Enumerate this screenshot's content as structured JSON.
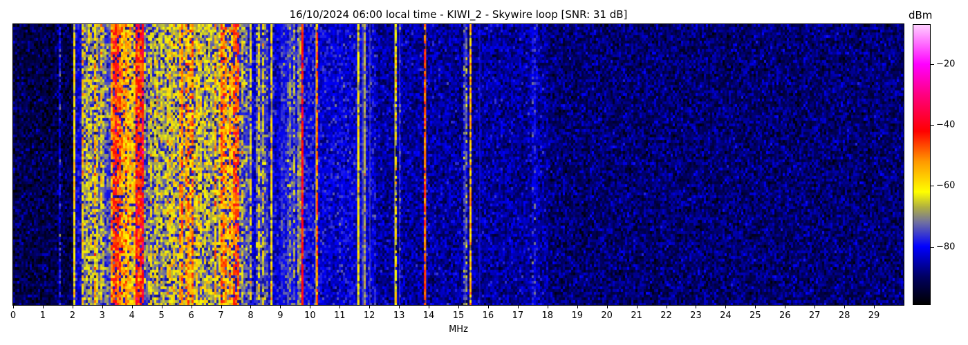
{
  "chart_data": {
    "type": "heatmap",
    "title": "16/10/2024 06:00 local time - KIWI_2 - Skywire loop [SNR: 31 dB]",
    "xlabel": "MHz",
    "xlim": [
      0,
      30
    ],
    "xticks": [
      "0",
      "1",
      "2",
      "3",
      "4",
      "5",
      "6",
      "7",
      "8",
      "9",
      "10",
      "11",
      "12",
      "13",
      "14",
      "15",
      "16",
      "17",
      "18",
      "19",
      "20",
      "21",
      "22",
      "23",
      "24",
      "25",
      "26",
      "27",
      "28",
      "29"
    ],
    "colorbar": {
      "label": "dBm",
      "range": [
        -99,
        -7
      ],
      "ticks": [
        -20,
        -40,
        -60,
        -80
      ],
      "tick_labels": [
        "−20",
        "−40",
        "−60",
        "−80"
      ],
      "colormap_stops": [
        {
          "dbm": -99,
          "color": "#000000"
        },
        {
          "dbm": -90,
          "color": "#000060"
        },
        {
          "dbm": -80,
          "color": "#0000ff"
        },
        {
          "dbm": -72,
          "color": "#7070a0"
        },
        {
          "dbm": -67,
          "color": "#b0b040"
        },
        {
          "dbm": -62,
          "color": "#ffff00"
        },
        {
          "dbm": -52,
          "color": "#ff9900"
        },
        {
          "dbm": -42,
          "color": "#ff0000"
        },
        {
          "dbm": -30,
          "color": "#ff0080"
        },
        {
          "dbm": -20,
          "color": "#ff00ff"
        },
        {
          "dbm": -7,
          "color": "#ffd0ff"
        }
      ]
    },
    "noise_floor": [
      {
        "from_mhz": 0,
        "to_mhz": 2.0,
        "dbm": -92
      },
      {
        "from_mhz": 2.0,
        "to_mhz": 9.0,
        "dbm": -82
      },
      {
        "from_mhz": 9.0,
        "to_mhz": 10.3,
        "dbm": -80
      },
      {
        "from_mhz": 10.3,
        "to_mhz": 12.2,
        "dbm": -82
      },
      {
        "from_mhz": 12.2,
        "to_mhz": 16.0,
        "dbm": -86
      },
      {
        "from_mhz": 16.0,
        "to_mhz": 18.0,
        "dbm": -86
      },
      {
        "from_mhz": 18.0,
        "to_mhz": 30,
        "dbm": -89
      }
    ],
    "signals": [
      {
        "from_mhz": 1.53,
        "to_mhz": 1.57,
        "dbm": -80
      },
      {
        "from_mhz": 2.03,
        "to_mhz": 2.08,
        "dbm": -60
      },
      {
        "from_mhz": 2.3,
        "to_mhz": 3.0,
        "dbm": -66
      },
      {
        "from_mhz": 3.0,
        "to_mhz": 3.3,
        "dbm": -72
      },
      {
        "from_mhz": 3.3,
        "to_mhz": 3.8,
        "dbm": -48
      },
      {
        "from_mhz": 3.8,
        "to_mhz": 4.1,
        "dbm": -58
      },
      {
        "from_mhz": 4.1,
        "to_mhz": 4.4,
        "dbm": -44
      },
      {
        "from_mhz": 4.4,
        "to_mhz": 5.6,
        "dbm": -67
      },
      {
        "from_mhz": 5.6,
        "to_mhz": 6.3,
        "dbm": -58
      },
      {
        "from_mhz": 6.3,
        "to_mhz": 7.0,
        "dbm": -65
      },
      {
        "from_mhz": 7.0,
        "to_mhz": 7.6,
        "dbm": -55
      },
      {
        "from_mhz": 7.6,
        "to_mhz": 8.0,
        "dbm": -70
      },
      {
        "from_mhz": 8.2,
        "to_mhz": 8.6,
        "dbm": -67
      },
      {
        "from_mhz": 8.68,
        "to_mhz": 8.74,
        "dbm": -60
      },
      {
        "from_mhz": 9.0,
        "to_mhz": 9.5,
        "dbm": -76
      },
      {
        "from_mhz": 9.6,
        "to_mhz": 9.68,
        "dbm": -70
      },
      {
        "from_mhz": 9.7,
        "to_mhz": 9.76,
        "dbm": -40
      },
      {
        "from_mhz": 10.18,
        "to_mhz": 10.24,
        "dbm": -60
      },
      {
        "from_mhz": 11.58,
        "to_mhz": 11.66,
        "dbm": -61
      },
      {
        "from_mhz": 11.75,
        "to_mhz": 11.88,
        "dbm": -72
      },
      {
        "from_mhz": 12.0,
        "to_mhz": 12.04,
        "dbm": -72
      },
      {
        "from_mhz": 12.84,
        "to_mhz": 12.89,
        "dbm": -62
      },
      {
        "from_mhz": 13.0,
        "to_mhz": 13.03,
        "dbm": -72
      },
      {
        "from_mhz": 13.87,
        "to_mhz": 13.92,
        "dbm": -50
      },
      {
        "from_mhz": 15.2,
        "to_mhz": 15.26,
        "dbm": -74
      },
      {
        "from_mhz": 15.38,
        "to_mhz": 15.43,
        "dbm": -60
      },
      {
        "from_mhz": 15.7,
        "to_mhz": 15.74,
        "dbm": -78
      },
      {
        "from_mhz": 17.5,
        "to_mhz": 17.68,
        "dbm": -82
      }
    ],
    "grid": false,
    "legend": "colorbar-right"
  }
}
